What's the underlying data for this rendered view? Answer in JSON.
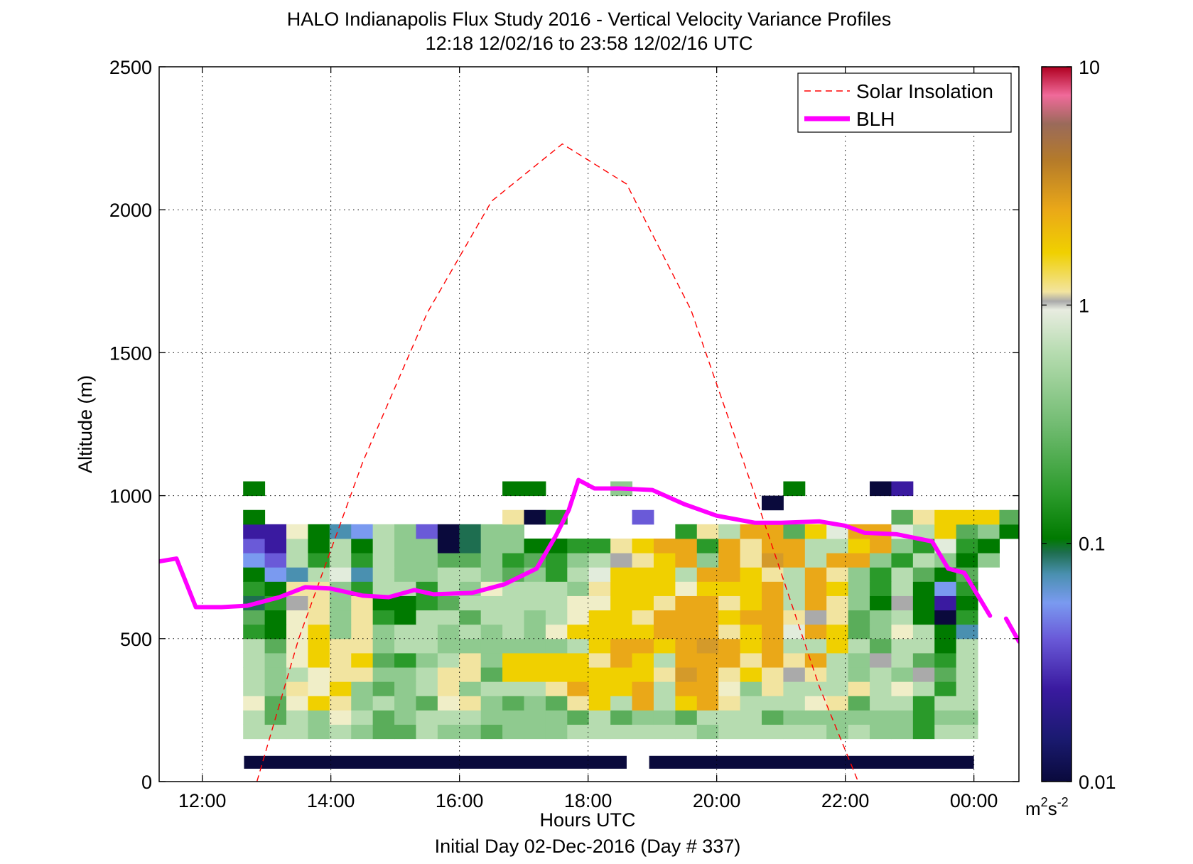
{
  "chart_data": {
    "type": "heatmap",
    "title": "HALO Indianapolis Flux Study 2016 - Vertical Velocity Variance Profiles",
    "subtitle": "12:18 12/02/16 to 23:58 12/02/16  UTC",
    "xlabel": "Hours UTC",
    "xlabel2": "Initial Day 02-Dec-2016 (Day # 337)",
    "ylabel": "Altitude (m)",
    "xlim": [
      11.33,
      24.7
    ],
    "ylim": [
      0,
      2500
    ],
    "xticks": [
      12,
      14,
      16,
      18,
      20,
      22,
      24
    ],
    "xtick_labels": [
      "12:00",
      "14:00",
      "16:00",
      "18:00",
      "20:00",
      "22:00",
      "00:00"
    ],
    "yticks": [
      0,
      500,
      1000,
      1500,
      2000,
      2500
    ],
    "ytick_labels": [
      "0",
      "500",
      "1000",
      "1500",
      "2000",
      "2500"
    ],
    "grid": true,
    "legend_position": "top-right",
    "colorbar": {
      "scale": "log",
      "range": [
        0.01,
        10
      ],
      "tick_labels": [
        "0.01",
        "0.1",
        "1",
        "10"
      ],
      "unit_base": "m",
      "unit_sup1": "2",
      "unit_mid": "s",
      "unit_sup2": "-2"
    },
    "series": [
      {
        "name": "Solar Insolation",
        "style": "dashed",
        "color": "#ff0000",
        "x": [
          12.85,
          13.5,
          14.5,
          15.5,
          16.5,
          17.6,
          18.6,
          19.6,
          20.6,
          21.6,
          22.2
        ],
        "y": [
          0,
          500,
          1120,
          1640,
          2030,
          2230,
          2090,
          1650,
          1000,
          330,
          0
        ]
      },
      {
        "name": "BLH",
        "style": "solid",
        "color": "#ff00ff",
        "x": [
          11.33,
          11.6,
          11.9,
          12.3,
          12.7,
          13.2,
          13.6,
          14.0,
          14.5,
          14.9,
          15.3,
          15.6,
          16.2,
          16.7,
          17.2,
          17.5,
          17.7,
          17.85,
          18.1,
          18.5,
          19.0,
          19.5,
          20.0,
          20.6,
          21.0,
          21.6,
          22.0,
          22.3,
          22.8,
          23.35,
          23.6,
          23.85,
          24.25
        ],
        "y": [
          770,
          780,
          610,
          610,
          615,
          645,
          680,
          675,
          650,
          645,
          670,
          655,
          660,
          690,
          745,
          860,
          950,
          1055,
          1025,
          1025,
          1020,
          970,
          930,
          905,
          905,
          910,
          895,
          870,
          865,
          840,
          745,
          730,
          580
        ],
        "extra_segment": {
          "x": [
            24.5,
            24.7
          ],
          "y": [
            570,
            490
          ]
        }
      }
    ],
    "nodata_bar": {
      "color": "#0a0a3c",
      "segments": [
        [
          12.65,
          18.6
        ],
        [
          18.95,
          24.0
        ]
      ],
      "y_range": [
        45,
        90
      ]
    }
  }
}
